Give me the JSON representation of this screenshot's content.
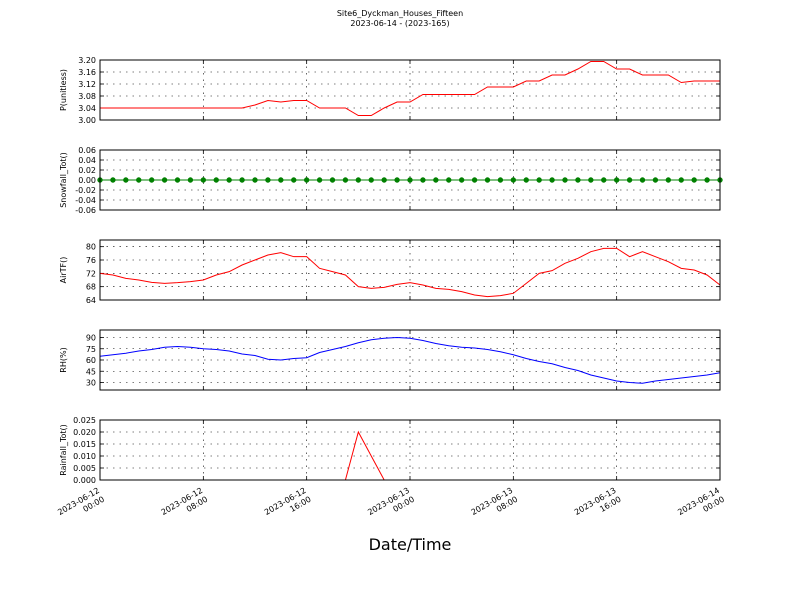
{
  "title": "Site6_Dyckman_Houses_Fifteen",
  "subtitle": "2023-06-14 - (2023-165)",
  "xlabel": "Date/Time",
  "xlim": [
    "2023-06-12 00:00",
    "2023-06-14 00:00"
  ],
  "xticks": [
    "2023-06-12 00:00",
    "2023-06-12 08:00",
    "2023-06-12 16:00",
    "2023-06-13 00:00",
    "2023-06-13 08:00",
    "2023-06-13 16:00",
    "2023-06-14 00:00"
  ],
  "x": [
    "2023-06-12 00:00",
    "2023-06-12 01:00",
    "2023-06-12 02:00",
    "2023-06-12 03:00",
    "2023-06-12 04:00",
    "2023-06-12 05:00",
    "2023-06-12 06:00",
    "2023-06-12 07:00",
    "2023-06-12 08:00",
    "2023-06-12 09:00",
    "2023-06-12 10:00",
    "2023-06-12 11:00",
    "2023-06-12 12:00",
    "2023-06-12 13:00",
    "2023-06-12 14:00",
    "2023-06-12 15:00",
    "2023-06-12 16:00",
    "2023-06-12 17:00",
    "2023-06-12 18:00",
    "2023-06-12 19:00",
    "2023-06-12 20:00",
    "2023-06-12 21:00",
    "2023-06-12 22:00",
    "2023-06-12 23:00",
    "2023-06-13 00:00",
    "2023-06-13 01:00",
    "2023-06-13 02:00",
    "2023-06-13 03:00",
    "2023-06-13 04:00",
    "2023-06-13 05:00",
    "2023-06-13 06:00",
    "2023-06-13 07:00",
    "2023-06-13 08:00",
    "2023-06-13 09:00",
    "2023-06-13 10:00",
    "2023-06-13 11:00",
    "2023-06-13 12:00",
    "2023-06-13 13:00",
    "2023-06-13 14:00",
    "2023-06-13 15:00",
    "2023-06-13 16:00",
    "2023-06-13 17:00",
    "2023-06-13 18:00",
    "2023-06-13 19:00",
    "2023-06-13 20:00",
    "2023-06-13 21:00",
    "2023-06-13 22:00",
    "2023-06-13 23:00",
    "2023-06-14 00:00"
  ],
  "chart_data": [
    {
      "type": "line",
      "ylabel": "P(unitless)",
      "ylim": [
        3.0,
        3.2
      ],
      "grid": true,
      "yticks": [
        {
          "value": 3.0,
          "label": "3.00"
        },
        {
          "value": 3.04,
          "label": "3.04"
        },
        {
          "value": 3.08,
          "label": "3.08"
        },
        {
          "value": 3.12,
          "label": "3.12"
        },
        {
          "value": 3.16,
          "label": "3.16"
        },
        {
          "value": 3.2,
          "label": "3.20"
        }
      ],
      "series": [
        {
          "name": "P",
          "color": "#ff0000",
          "values": [
            3.04,
            3.04,
            3.04,
            3.04,
            3.04,
            3.04,
            3.04,
            3.04,
            3.04,
            3.04,
            3.04,
            3.04,
            3.05,
            3.065,
            3.06,
            3.065,
            3.065,
            3.04,
            3.04,
            3.04,
            3.015,
            3.015,
            3.04,
            3.06,
            3.06,
            3.085,
            3.085,
            3.085,
            3.085,
            3.085,
            3.11,
            3.11,
            3.11,
            3.13,
            3.13,
            3.15,
            3.15,
            3.17,
            3.195,
            3.195,
            3.17,
            3.17,
            3.15,
            3.15,
            3.15,
            3.125,
            3.13,
            3.13,
            3.13
          ]
        }
      ]
    },
    {
      "type": "line",
      "ylabel": "Snowfall_Tot()",
      "ylim": [
        -0.06,
        0.06
      ],
      "grid": true,
      "marker": true,
      "yticks": [
        {
          "value": -0.06,
          "label": "-0.06"
        },
        {
          "value": -0.04,
          "label": "-0.04"
        },
        {
          "value": -0.02,
          "label": "-0.02"
        },
        {
          "value": 0,
          "label": "0.00"
        },
        {
          "value": 0.02,
          "label": "0.02"
        },
        {
          "value": 0.04,
          "label": "0.04"
        },
        {
          "value": 0.06,
          "label": "0.06"
        }
      ],
      "series": [
        {
          "name": "Snowfall",
          "color": "#008000",
          "values": [
            0,
            0,
            0,
            0,
            0,
            0,
            0,
            0,
            0,
            0,
            0,
            0,
            0,
            0,
            0,
            0,
            0,
            0,
            0,
            0,
            0,
            0,
            0,
            0,
            0,
            0,
            0,
            0,
            0,
            0,
            0,
            0,
            0,
            0,
            0,
            0,
            0,
            0,
            0,
            0,
            0,
            0,
            0,
            0,
            0,
            0,
            0,
            0,
            0
          ]
        }
      ]
    },
    {
      "type": "line",
      "ylabel": "AirTF()",
      "ylim": [
        64,
        82
      ],
      "grid": true,
      "yticks": [
        64,
        68,
        72,
        76,
        80
      ],
      "series": [
        {
          "name": "AirTF",
          "color": "#ff0000",
          "values": [
            72,
            71.5,
            70.5,
            70,
            69.3,
            69,
            69.2,
            69.5,
            70,
            71.5,
            72.5,
            74.5,
            76,
            77.5,
            78.2,
            77,
            77,
            73.5,
            72.5,
            71.5,
            68,
            67.5,
            67.8,
            68.7,
            69.2,
            68.5,
            67.5,
            67.2,
            66.5,
            65.5,
            65,
            65.3,
            66,
            69,
            72,
            72.8,
            75,
            76.5,
            78.5,
            79.5,
            79.5,
            77,
            78.5,
            77,
            75.5,
            73.5,
            73,
            71.5,
            68.5
          ]
        }
      ]
    },
    {
      "type": "line",
      "ylabel": "RH(%)",
      "ylim": [
        20,
        100
      ],
      "grid": true,
      "yticks": [
        30,
        45,
        60,
        75,
        90
      ],
      "series": [
        {
          "name": "RH",
          "color": "#0000ff",
          "values": [
            65,
            67,
            69,
            72,
            74,
            77,
            78,
            77,
            75,
            74,
            72,
            68,
            66,
            61,
            60,
            62,
            63,
            70,
            74,
            78,
            83,
            87,
            89,
            90,
            89,
            86,
            82,
            79,
            77,
            76,
            74,
            71,
            67,
            62,
            58,
            55,
            50,
            46,
            40,
            36,
            32,
            30,
            29,
            32,
            34,
            36,
            38,
            40,
            43
          ]
        }
      ]
    },
    {
      "type": "line",
      "ylabel": "Rainfall_Tot()",
      "ylim": [
        0,
        0.025
      ],
      "grid": true,
      "yticks": [
        {
          "value": 0,
          "label": "0.000"
        },
        {
          "value": 0.005,
          "label": "0.005"
        },
        {
          "value": 0.01,
          "label": "0.010"
        },
        {
          "value": 0.015,
          "label": "0.015"
        },
        {
          "value": 0.02,
          "label": "0.020"
        },
        {
          "value": 0.025,
          "label": "0.025"
        }
      ],
      "series": [
        {
          "name": "Rainfall",
          "color": "#ff0000",
          "values": [
            0,
            0,
            0,
            0,
            0,
            0,
            0,
            0,
            0,
            0,
            0,
            0,
            0,
            0,
            0,
            0,
            0,
            0,
            0,
            0,
            0.02,
            0.01,
            0,
            0,
            0,
            0,
            0,
            0,
            0,
            0,
            0,
            0,
            0,
            0,
            0,
            0,
            0,
            0,
            0,
            0,
            0,
            0,
            0,
            0,
            0,
            0,
            0,
            0,
            0
          ]
        }
      ]
    }
  ]
}
